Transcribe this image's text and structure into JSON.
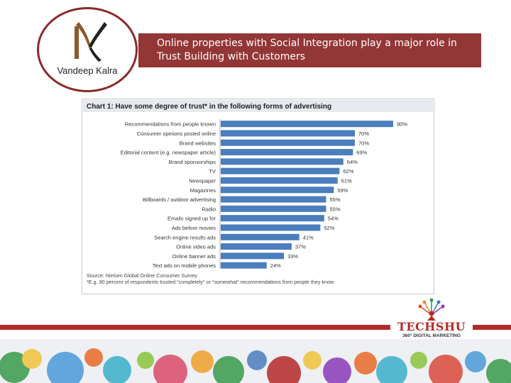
{
  "logo": {
    "name": "Vandeep Kalra"
  },
  "slide": {
    "title": "Online properties with Social Integration play a major role in Trust Building with Customers"
  },
  "brand": {
    "name": "TECHSHU",
    "tagline": "360° DIGITAL MARKETING"
  },
  "colors": {
    "accent": "#933636",
    "bar": "#4a7ebd",
    "divider": "#b32a2a"
  },
  "chart_data": {
    "type": "bar",
    "orientation": "horizontal",
    "title": "Chart 1: Have some degree of trust* in the following forms of advertising",
    "categories": [
      "Recommendations from people known",
      "Consumer opinions posted online",
      "Brand websites",
      "Editorial content (e.g. newspaper article)",
      "Brand sponsorships",
      "TV",
      "Newspaper",
      "Magazines",
      "Billboards / outdoor advertising",
      "Radio",
      "Emails signed up for",
      "Ads before movies",
      "Search engine results ads",
      "Online video ads",
      "Online banner ads",
      "Text ads on mobile phones"
    ],
    "values": [
      90,
      70,
      70,
      69,
      64,
      62,
      61,
      59,
      55,
      55,
      54,
      52,
      41,
      37,
      33,
      24
    ],
    "value_suffix": "%",
    "xlim": [
      0,
      100
    ],
    "grid": false,
    "source": "Source: Nielsen Global Online Consumer Survey",
    "footnote": "*E.g. 90 percent of respondents trusted \"completely\" or \"somewhat\" recommendations from people they know"
  }
}
